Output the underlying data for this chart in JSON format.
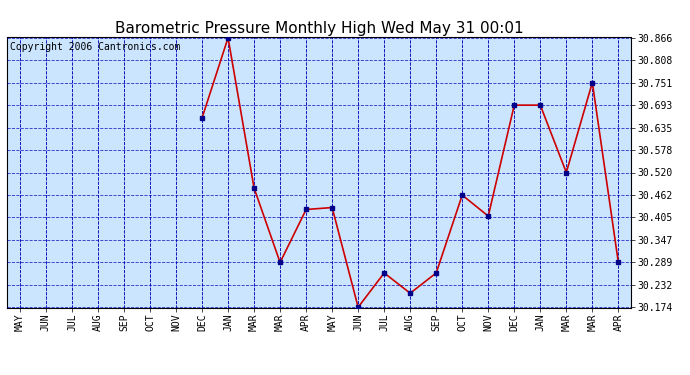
{
  "title": "Barometric Pressure Monthly High Wed May 31 00:01",
  "copyright": "Copyright 2006 Cantronics.com",
  "x_labels": [
    "MAY",
    "JUN",
    "JUL",
    "AUG",
    "SEP",
    "OCT",
    "NOV",
    "DEC",
    "JAN",
    "MAR",
    "MAR",
    "APR",
    "MAY",
    "JUN",
    "JUL",
    "AUG",
    "SEP",
    "OCT",
    "NOV",
    "DEC",
    "JAN",
    "MAR",
    "MAR",
    "APR"
  ],
  "y_values": [
    null,
    null,
    null,
    null,
    null,
    null,
    null,
    30.66,
    30.866,
    30.48,
    30.289,
    30.425,
    30.43,
    30.174,
    30.262,
    30.21,
    30.262,
    30.462,
    30.408,
    30.693,
    30.693,
    30.52,
    30.751,
    30.289
  ],
  "ylim_min": 30.174,
  "ylim_max": 30.866,
  "yticks": [
    30.866,
    30.808,
    30.751,
    30.693,
    30.635,
    30.578,
    30.52,
    30.462,
    30.405,
    30.347,
    30.289,
    30.232,
    30.174
  ],
  "line_color": "#cc0000",
  "marker_color": "#000088",
  "bg_color": "#cce5ff",
  "grid_color": "#0000bb",
  "title_fontsize": 11,
  "copyright_fontsize": 7
}
